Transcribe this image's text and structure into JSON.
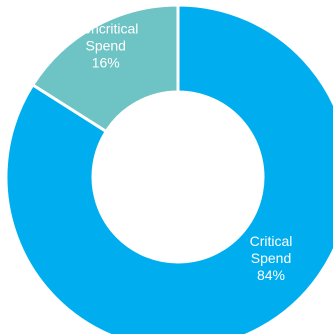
{
  "chart_data": {
    "type": "pie",
    "style": "donut",
    "slices": [
      {
        "label_lines": [
          "Critical",
          "Spend",
          "84%"
        ],
        "value": 84,
        "color": "#00AEEF"
      },
      {
        "label_lines": [
          "Noncritical",
          "Spend",
          "16%"
        ],
        "value": 16,
        "color": "#6EC3C4"
      }
    ],
    "legend": "none"
  }
}
